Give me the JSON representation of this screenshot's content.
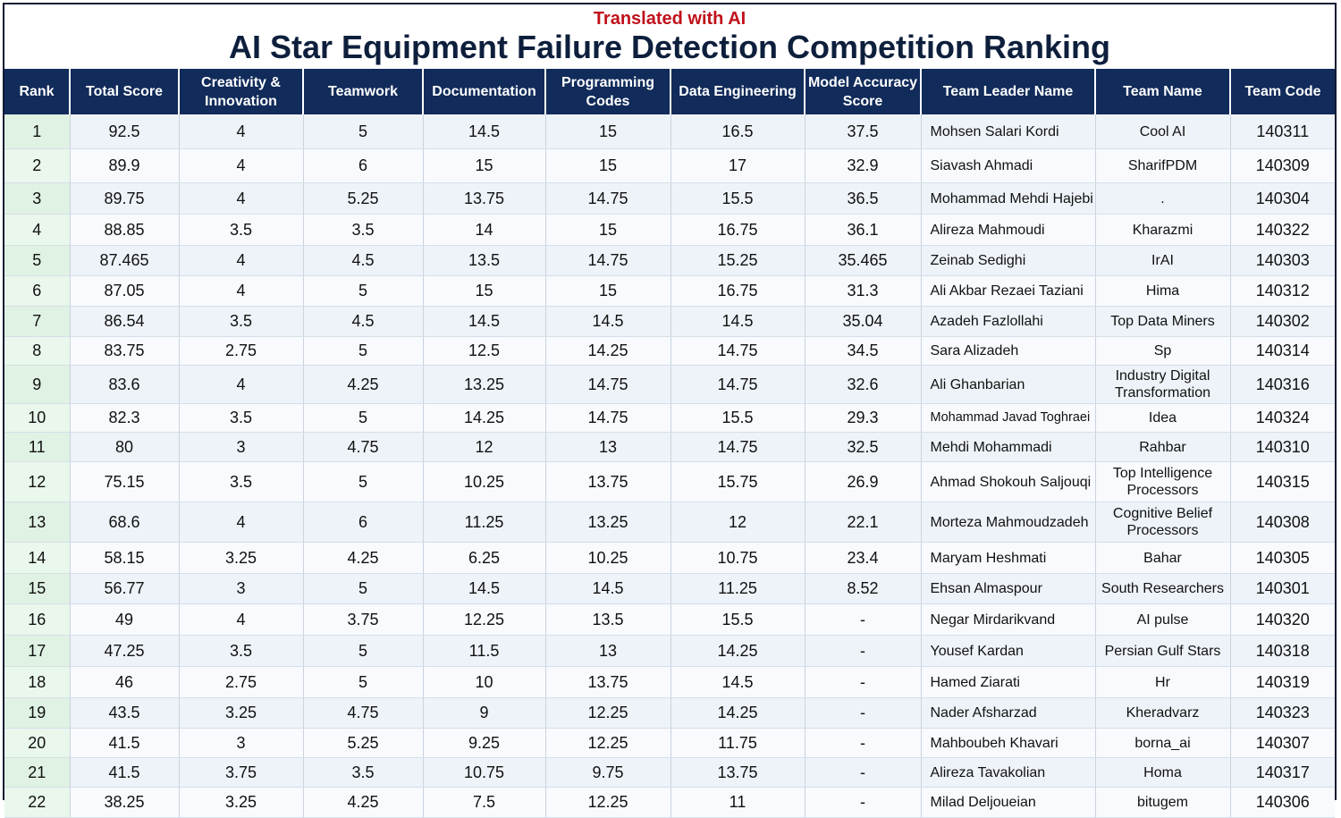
{
  "header": {
    "subtitle": "Translated with AI",
    "title": "AI Star Equipment Failure Detection Competition Ranking"
  },
  "columns": [
    "Rank",
    "Total Score",
    "Creativity & Innovation",
    "Teamwork",
    "Documentation",
    "Programming Codes",
    "Data Engineering",
    "Model Accuracy Score",
    "Team Leader Name",
    "Team Name",
    "Team Code"
  ],
  "rows": [
    [
      "1",
      "92.5",
      "4",
      "5",
      "14.5",
      "15",
      "16.5",
      "37.5",
      "Mohsen Salari Kordi",
      "Cool AI",
      "140311"
    ],
    [
      "2",
      "89.9",
      "4",
      "6",
      "15",
      "15",
      "17",
      "32.9",
      "Siavash Ahmadi",
      "SharifPDM",
      "140309"
    ],
    [
      "3",
      "89.75",
      "4",
      "5.25",
      "13.75",
      "14.75",
      "15.5",
      "36.5",
      "Mohammad Mehdi Hajebi",
      ".",
      "140304"
    ],
    [
      "4",
      "88.85",
      "3.5",
      "3.5",
      "14",
      "15",
      "16.75",
      "36.1",
      "Alireza Mahmoudi",
      "Kharazmi",
      "140322"
    ],
    [
      "5",
      "87.465",
      "4",
      "4.5",
      "13.5",
      "14.75",
      "15.25",
      "35.465",
      "Zeinab Sedighi",
      "IrAI",
      "140303"
    ],
    [
      "6",
      "87.05",
      "4",
      "5",
      "15",
      "15",
      "16.75",
      "31.3",
      "Ali Akbar Rezaei Taziani",
      "Hima",
      "140312"
    ],
    [
      "7",
      "86.54",
      "3.5",
      "4.5",
      "14.5",
      "14.5",
      "14.5",
      "35.04",
      "Azadeh Fazlollahi",
      "Top Data Miners",
      "140302"
    ],
    [
      "8",
      "83.75",
      "2.75",
      "5",
      "12.5",
      "14.25",
      "14.75",
      "34.5",
      "Sara Alizadeh",
      "Sp",
      "140314"
    ],
    [
      "9",
      "83.6",
      "4",
      "4.25",
      "13.25",
      "14.75",
      "14.75",
      "32.6",
      "Ali Ghanbarian",
      "Industry Digital Transformation",
      "140316"
    ],
    [
      "10",
      "82.3",
      "3.5",
      "5",
      "14.25",
      "14.75",
      "15.5",
      "29.3",
      "Mohammad Javad Toghraei",
      "Idea",
      "140324"
    ],
    [
      "11",
      "80",
      "3",
      "4.75",
      "12",
      "13",
      "14.75",
      "32.5",
      "Mehdi Mohammadi",
      "Rahbar",
      "140310"
    ],
    [
      "12",
      "75.15",
      "3.5",
      "5",
      "10.25",
      "13.75",
      "15.75",
      "26.9",
      "Ahmad Shokouh Saljouqi",
      "Top Intelligence Processors",
      "140315"
    ],
    [
      "13",
      "68.6",
      "4",
      "6",
      "11.25",
      "13.25",
      "12",
      "22.1",
      "Morteza Mahmoudzadeh",
      "Cognitive Belief Processors",
      "140308"
    ],
    [
      "14",
      "58.15",
      "3.25",
      "4.25",
      "6.25",
      "10.25",
      "10.75",
      "23.4",
      "Maryam Heshmati",
      "Bahar",
      "140305"
    ],
    [
      "15",
      "56.77",
      "3",
      "5",
      "14.5",
      "14.5",
      "11.25",
      "8.52",
      "Ehsan Almaspour",
      "South Researchers",
      "140301"
    ],
    [
      "16",
      "49",
      "4",
      "3.75",
      "12.25",
      "13.5",
      "15.5",
      "-",
      "Negar Mirdarikvand",
      "AI pulse",
      "140320"
    ],
    [
      "17",
      "47.25",
      "3.5",
      "5",
      "11.5",
      "13",
      "14.25",
      "-",
      "Yousef Kardan",
      "Persian Gulf Stars",
      "140318"
    ],
    [
      "18",
      "46",
      "2.75",
      "5",
      "10",
      "13.75",
      "14.5",
      "-",
      "Hamed Ziarati",
      "Hr",
      "140319"
    ],
    [
      "19",
      "43.5",
      "3.25",
      "4.75",
      "9",
      "12.25",
      "14.25",
      "-",
      "Nader Afsharzad",
      "Kheradvarz",
      "140323"
    ],
    [
      "20",
      "41.5",
      "3",
      "5.25",
      "9.25",
      "12.25",
      "11.75",
      "-",
      "Mahboubeh Khavari",
      "borna_ai",
      "140307"
    ],
    [
      "21",
      "41.5",
      "3.75",
      "3.5",
      "10.75",
      "9.75",
      "13.75",
      "-",
      "Alireza Tavakolian",
      "Homa",
      "140317"
    ],
    [
      "22",
      "38.25",
      "3.25",
      "4.25",
      "7.5",
      "12.25",
      "11",
      "-",
      "Milad Deljoueian",
      "bitugem",
      "140306"
    ]
  ]
}
